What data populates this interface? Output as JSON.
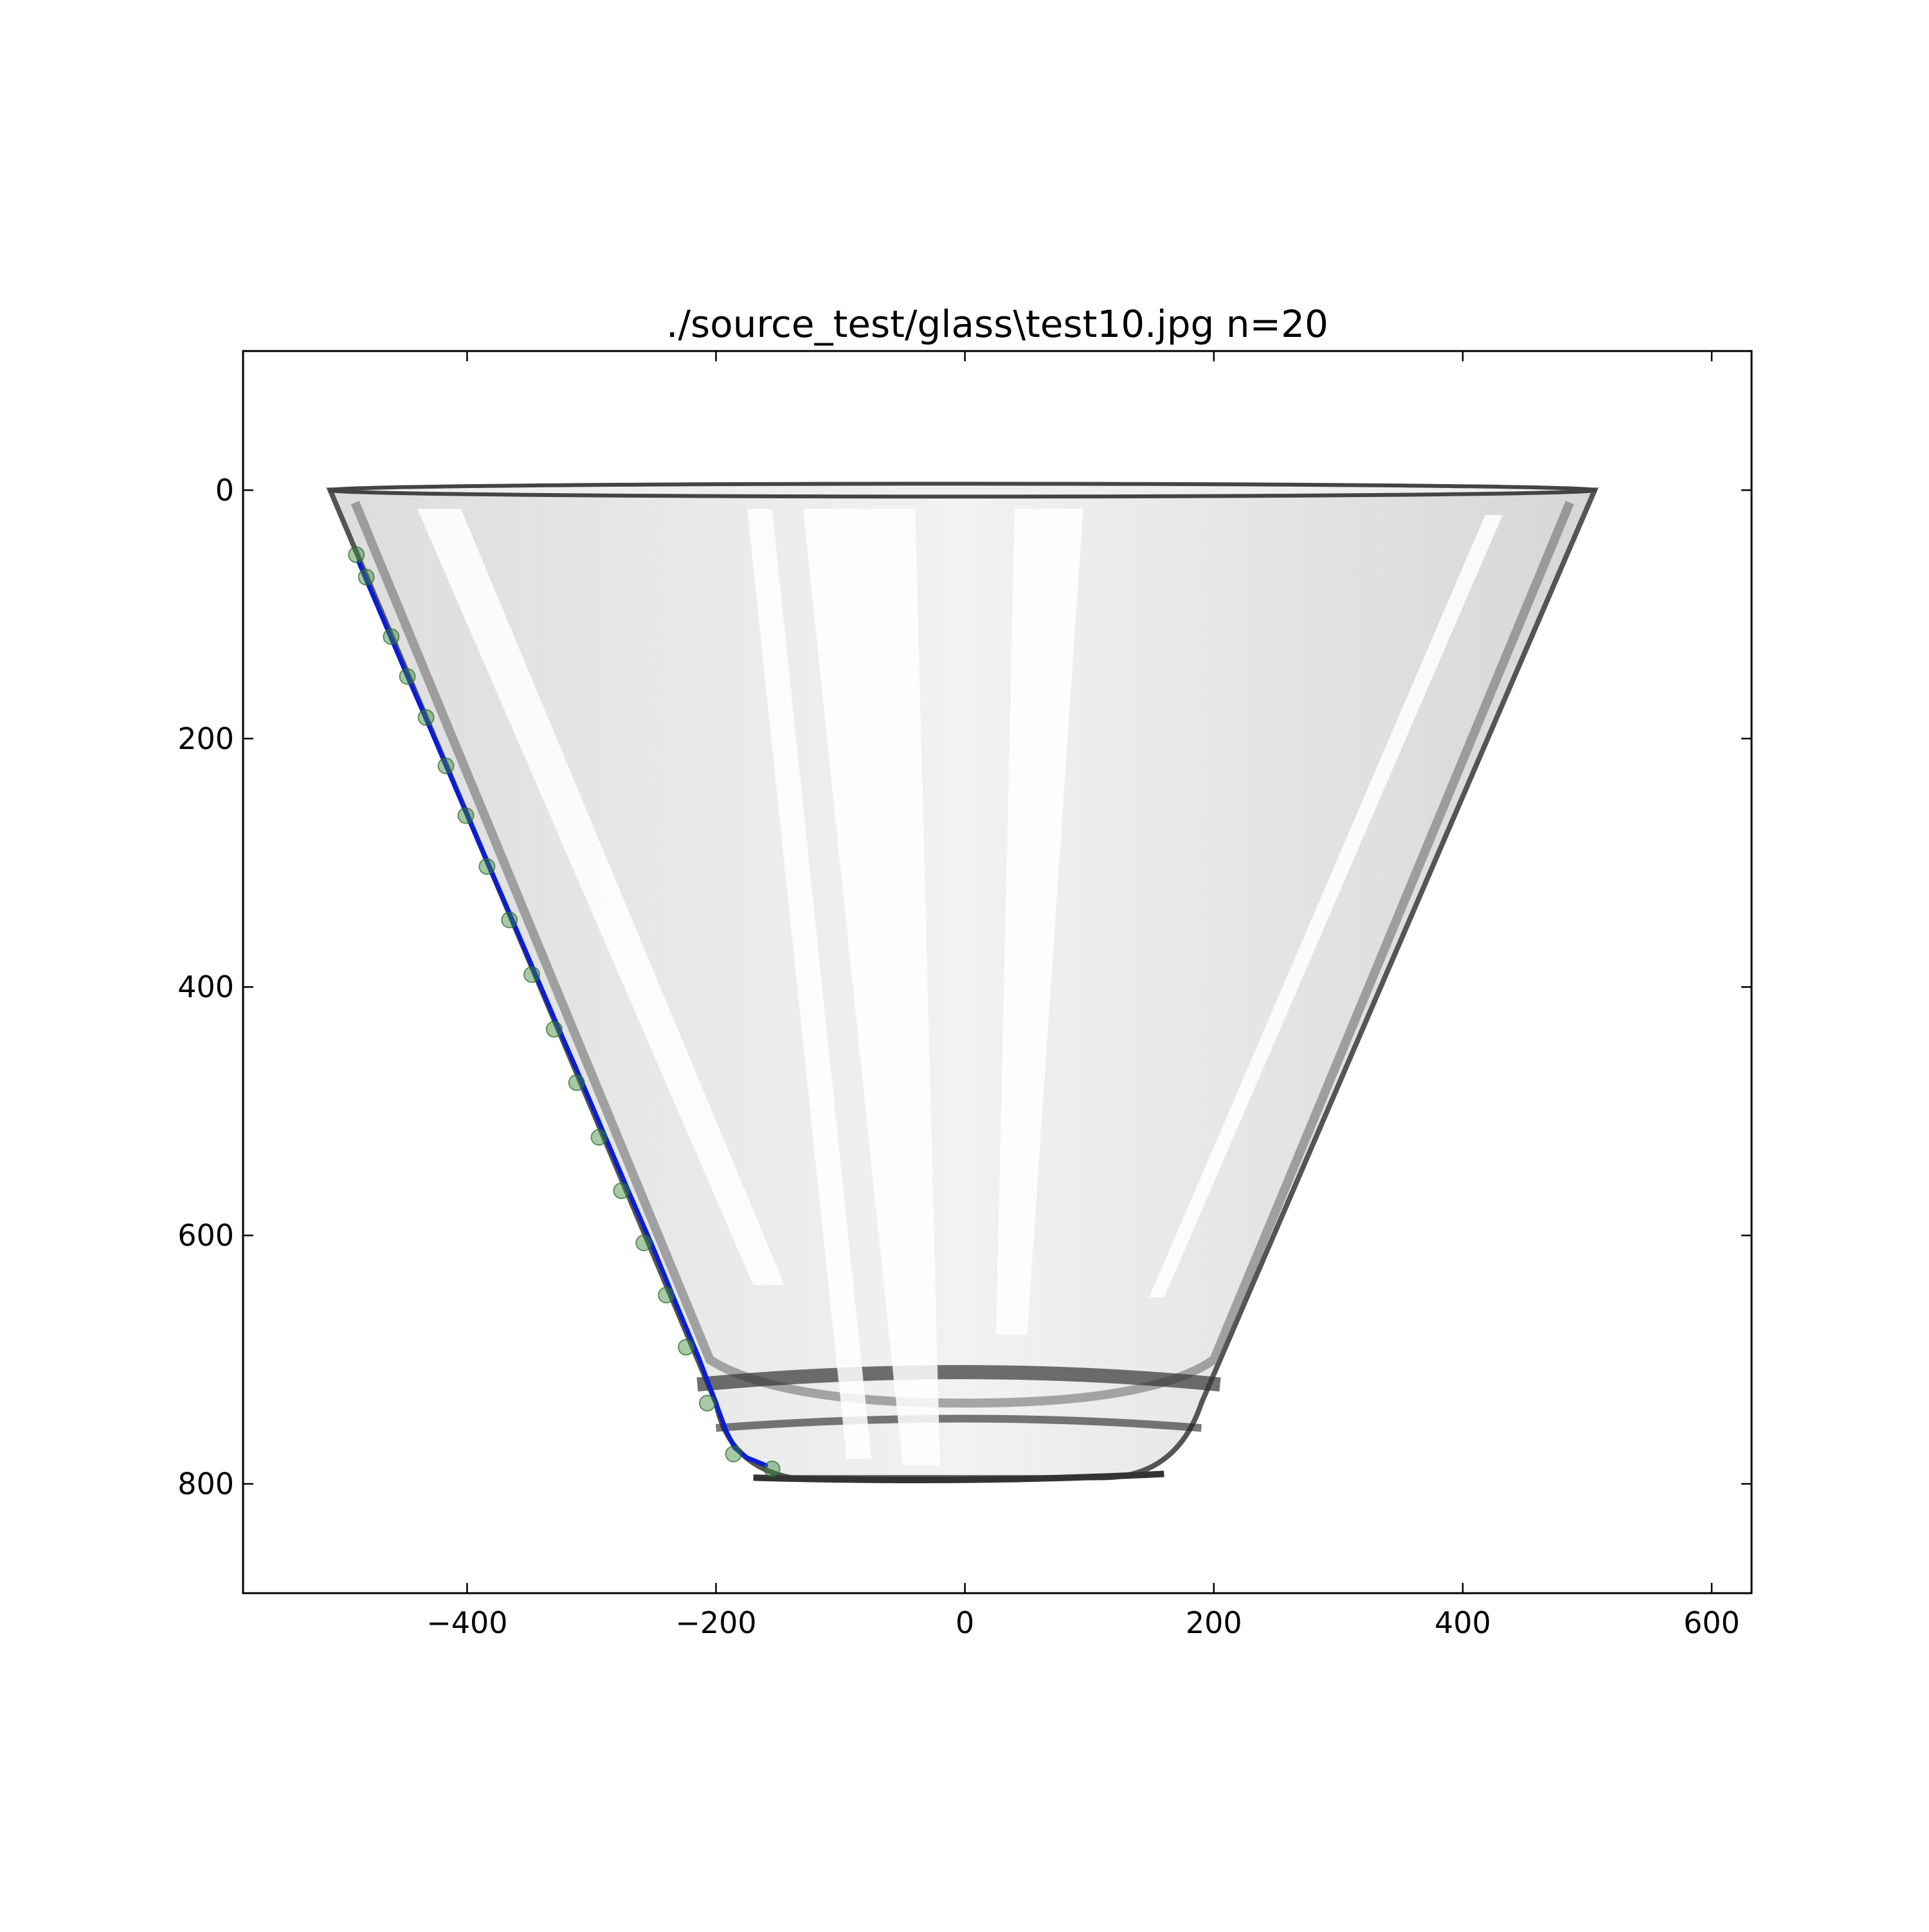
{
  "chart_data": {
    "type": "scatter",
    "title": "./source_test/glass\\test10.jpg n=20",
    "xlabel": "",
    "ylabel": "",
    "xlim": [
      -580,
      632
    ],
    "ylim": [
      888,
      -112
    ],
    "y_inverted": true,
    "grid": false,
    "x_ticks": [
      -400,
      -200,
      0,
      200,
      400,
      600
    ],
    "x_tick_labels": [
      "−400",
      "−200",
      "0",
      "200",
      "400",
      "600"
    ],
    "y_ticks": [
      0,
      200,
      400,
      600,
      800
    ],
    "y_tick_labels": [
      "0",
      "200",
      "400",
      "600",
      "800"
    ],
    "background_image": {
      "subject": "clear glass cup (trapezoid bowl)",
      "rim": {
        "left": -510,
        "right": 506,
        "y": 0
      },
      "base": {
        "left": -180,
        "right": 170,
        "y": 795
      }
    },
    "series": [
      {
        "kind": "points",
        "color": "#3a8a3a",
        "x": [
          -489,
          -481,
          -461,
          -448,
          -433,
          -417,
          -401,
          -384,
          -366,
          -348,
          -330,
          -312,
          -294,
          -276,
          -258,
          -240,
          -224,
          -207,
          -186,
          -155
        ],
        "y": [
          52,
          70,
          118,
          150,
          183,
          222,
          262,
          303,
          346,
          390,
          434,
          477,
          521,
          564,
          606,
          648,
          690,
          735,
          776,
          788
        ]
      },
      {
        "kind": "fit-line",
        "color": "#0a1ed6",
        "x": [
          -487,
          -470,
          -450,
          -430,
          -410,
          -390,
          -370,
          -350,
          -330,
          -310,
          -290,
          -270,
          -250,
          -232,
          -214,
          -200,
          -192,
          -185,
          -175,
          -160
        ],
        "y": [
          58,
          98,
          145,
          191,
          238,
          285,
          331,
          378,
          425,
          471,
          518,
          565,
          611,
          655,
          698,
          735,
          757,
          771,
          779,
          785
        ]
      }
    ]
  }
}
